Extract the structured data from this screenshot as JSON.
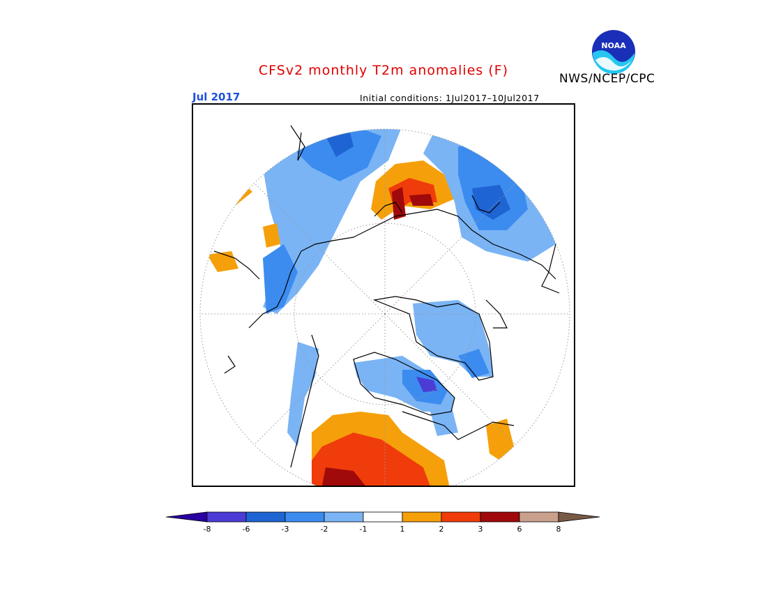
{
  "header": {
    "title": "CFSv2 monthly T2m anomalies (F)",
    "title_color": "#e00000",
    "agency": "NWS/NCEP/CPC",
    "logo_text": "NOAA",
    "month": "Jul 2017",
    "month_color": "#1e50e0",
    "initial_conditions": "Initial conditions: 1Jul2017–10Jul2017"
  },
  "legend": {
    "ticks": [
      "-8",
      "-6",
      "-3",
      "-2",
      "-1",
      "1",
      "2",
      "3",
      "6",
      "8"
    ],
    "colors": [
      "#2a00a0",
      "#4b3cd6",
      "#1e64d2",
      "#3c8cf0",
      "#7ab4f5",
      "#ffffff",
      "#f5a00a",
      "#f03c0a",
      "#a00a0a",
      "#c8a08c",
      "#785a46"
    ]
  }
}
